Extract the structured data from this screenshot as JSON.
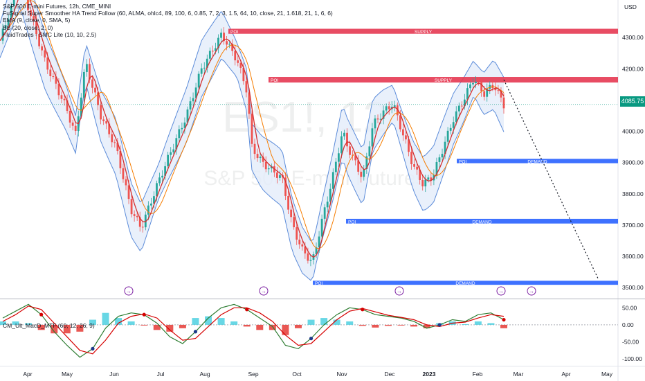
{
  "chart_data": [
    {
      "type": "line",
      "title": "S&P 500 E-mini Futures, 12h, CME_MINI",
      "watermark_symbol": "ES1!, 12",
      "watermark_name": "S&P 500 E-mini Futures",
      "currency": "USD",
      "legend": [
        "S&P 500 E-mini Futures, 12h, CME_MINI",
        "FuSignal Super Smoother HA Trend Follow (60, ALMA, ohlc4, 89, 100, 6, 0.85, 7, 2, 3, 1.5, 64, 10, close, 21, 1.618, 21, 1, 6, 6)",
        "EMA (9, close, 0, SMA, 5)",
        "BB (20, close, 2, 0)",
        "FluidTrades - SMC Lite (10, 10, 2.5)"
      ],
      "last_price": "4085.75",
      "y_ticks": [
        4300.0,
        4200.0,
        4100.0,
        4000.0,
        3900.0,
        3800.0,
        3700.0,
        3600.0,
        3500.0
      ],
      "ylim": [
        3465,
        4420
      ],
      "x_ticks": [
        "Apr",
        "May",
        "Jun",
        "Jul",
        "Aug",
        "Sep",
        "Oct",
        "Nov",
        "Dec",
        "2023",
        "Feb",
        "Mar",
        "Apr",
        "May"
      ],
      "zones": [
        {
          "type": "supply",
          "label": "SUPPLY",
          "tag": "POI",
          "low": 4312,
          "high": 4328,
          "color": "#e53952"
        },
        {
          "type": "supply",
          "label": "SUPPLY",
          "tag": "POI",
          "low": 4156,
          "high": 4174,
          "color": "#e53952"
        },
        {
          "type": "demand",
          "label": "DEMAND",
          "tag": "POI",
          "low": 3898,
          "high": 3912,
          "color": "#2962ff"
        },
        {
          "type": "demand",
          "label": "DEMAND",
          "tag": "POI",
          "low": 3705,
          "high": 3720,
          "color": "#2962ff"
        },
        {
          "type": "demand",
          "label": "DEMAND",
          "tag": "POI",
          "low": 3509,
          "high": 3522,
          "color": "#2962ff"
        }
      ],
      "price_path": [
        [
          0.0,
          4290
        ],
        [
          0.04,
          4480
        ],
        [
          0.09,
          4220
        ],
        [
          0.13,
          4080
        ],
        [
          0.15,
          3990
        ],
        [
          0.17,
          4220
        ],
        [
          0.2,
          4050
        ],
        [
          0.23,
          3950
        ],
        [
          0.26,
          3750
        ],
        [
          0.28,
          3690
        ],
        [
          0.31,
          3820
        ],
        [
          0.33,
          3900
        ],
        [
          0.37,
          4050
        ],
        [
          0.4,
          4200
        ],
        [
          0.44,
          4310
        ],
        [
          0.47,
          4230
        ],
        [
          0.49,
          4130
        ],
        [
          0.5,
          3950
        ],
        [
          0.52,
          3900
        ],
        [
          0.56,
          3850
        ],
        [
          0.58,
          3700
        ],
        [
          0.6,
          3620
        ],
        [
          0.62,
          3580
        ],
        [
          0.64,
          3720
        ],
        [
          0.66,
          3850
        ],
        [
          0.68,
          4000
        ],
        [
          0.69,
          3950
        ],
        [
          0.72,
          3850
        ],
        [
          0.74,
          4020
        ],
        [
          0.76,
          4060
        ],
        [
          0.78,
          4090
        ],
        [
          0.8,
          3990
        ],
        [
          0.82,
          3890
        ],
        [
          0.84,
          3830
        ],
        [
          0.86,
          3860
        ],
        [
          0.88,
          3950
        ],
        [
          0.9,
          4040
        ],
        [
          0.92,
          4100
        ],
        [
          0.94,
          4170
        ],
        [
          0.96,
          4120
        ],
        [
          0.98,
          4150
        ],
        [
          1.0,
          4085
        ]
      ],
      "projection": [
        [
          0.0,
          4165
        ],
        [
          1.0,
          3525
        ]
      ],
      "event_markers": 5
    },
    {
      "type": "line",
      "title": "CM_Ult_MacD_MTF (60, 12, 26, 9)",
      "y_ticks": [
        50.0,
        0.0,
        -50.0,
        -100.0
      ],
      "ylim": [
        -120,
        75
      ],
      "macd": [
        20,
        40,
        60,
        30,
        -20,
        -60,
        -95,
        -70,
        -10,
        25,
        35,
        30,
        5,
        -35,
        -55,
        -20,
        20,
        50,
        60,
        45,
        20,
        -5,
        -60,
        -70,
        -40,
        0,
        30,
        50,
        45,
        30,
        25,
        20,
        10,
        -10,
        0,
        15,
        10,
        30,
        35,
        15
      ],
      "signal": [
        10,
        30,
        55,
        45,
        5,
        -35,
        -75,
        -85,
        -45,
        5,
        25,
        32,
        20,
        -15,
        -45,
        -40,
        -5,
        30,
        50,
        50,
        35,
        10,
        -30,
        -60,
        -55,
        -20,
        15,
        40,
        48,
        38,
        28,
        22,
        15,
        0,
        -5,
        5,
        8,
        20,
        30,
        25
      ]
    }
  ],
  "colors": {
    "supply": "#e53952",
    "demand": "#2962ff",
    "bb": "#5b8bd9",
    "bb_fill": "#e3ecfa",
    "ema": "#f57c00",
    "trend": "#d32f2f",
    "up": "#26a69a",
    "down": "#ef5350",
    "macd": "#2e7d32",
    "signal": "#d50000",
    "hist_pos": "#4dd0e1",
    "hist_neg": "#e53935",
    "event": "#7b1fa2",
    "price_tag": "#089981"
  }
}
